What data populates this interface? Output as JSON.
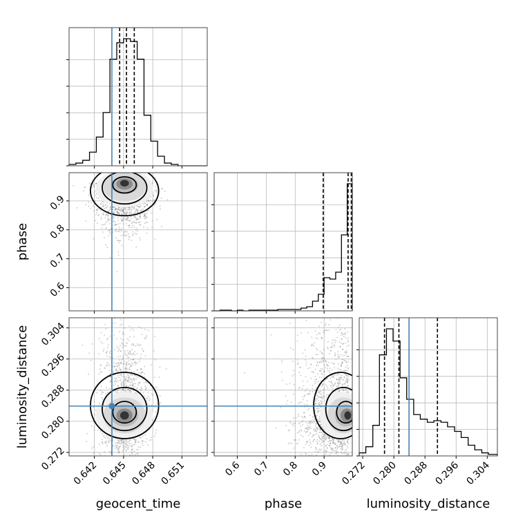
{
  "chart_data": {
    "type": "corner",
    "parameters": [
      "geocent_time",
      "phase",
      "luminosity_distance"
    ],
    "truths": {
      "geocent_time": 0.6438,
      "phase": null,
      "luminosity_distance": 0.2839
    },
    "truth_color": "#4682b4",
    "grid": true,
    "ranges": {
      "geocent_time": [
        0.6394,
        0.6536
      ],
      "phase": [
        0.52,
        0.9975
      ],
      "luminosity_distance": [
        0.2711,
        0.3066
      ]
    },
    "ticks": {
      "geocent_time": [
        0.642,
        0.645,
        0.648,
        0.651
      ],
      "phase": [
        0.6,
        0.7,
        0.8,
        0.9
      ],
      "luminosity_distance": [
        0.272,
        0.28,
        0.288,
        0.296,
        0.304
      ]
    },
    "tick_labels": {
      "geocent_time": [
        "0.642",
        "0.645",
        "0.648",
        "0.651"
      ],
      "phase": [
        "0.6",
        "0.7",
        "0.8",
        "0.9"
      ],
      "luminosity_distance": [
        "0.272",
        "0.280",
        "0.288",
        "0.296",
        "0.304"
      ]
    },
    "quantiles": {
      "geocent_time": [
        0.6446,
        0.6453,
        0.6461
      ],
      "phase": [
        0.897,
        0.983,
        0.994
      ],
      "luminosity_distance": [
        0.2776,
        0.2813,
        0.2912
      ]
    },
    "histograms": {
      "geocent_time": {
        "edges": [
          0.6394,
          0.6401,
          0.6408,
          0.6415,
          0.6422,
          0.6429,
          0.6436,
          0.6443,
          0.645,
          0.6457,
          0.6464,
          0.6471,
          0.6478,
          0.6485,
          0.6492,
          0.6499,
          0.6506,
          0.6513,
          0.652,
          0.6527,
          0.6536
        ],
        "counts": [
          0.01,
          0.02,
          0.04,
          0.1,
          0.21,
          0.39,
          0.78,
          0.9,
          0.93,
          0.91,
          0.78,
          0.37,
          0.18,
          0.07,
          0.02,
          0.01,
          0,
          0,
          0,
          0
        ]
      },
      "phase": {
        "edges": [
          0.52,
          0.54,
          0.56,
          0.58,
          0.6,
          0.62,
          0.64,
          0.66,
          0.68,
          0.7,
          0.72,
          0.74,
          0.76,
          0.78,
          0.8,
          0.82,
          0.84,
          0.86,
          0.88,
          0.9,
          0.92,
          0.94,
          0.96,
          0.98,
          0.9975
        ],
        "counts": [
          0,
          0.005,
          0.005,
          0,
          0.005,
          0,
          0.005,
          0.005,
          0.005,
          0.005,
          0.005,
          0.01,
          0.01,
          0.01,
          0.01,
          0.02,
          0.03,
          0.07,
          0.12,
          0.24,
          0.23,
          0.28,
          0.55,
          0.92
        ]
      },
      "luminosity_distance": {
        "edges": [
          0.2711,
          0.2728,
          0.2746,
          0.2763,
          0.2781,
          0.2798,
          0.2816,
          0.2833,
          0.2851,
          0.2868,
          0.2886,
          0.2903,
          0.2921,
          0.2938,
          0.2956,
          0.2973,
          0.2991,
          0.3008,
          0.3026,
          0.3043,
          0.3066
        ],
        "counts": [
          0.02,
          0.06,
          0.2,
          0.66,
          0.83,
          0.75,
          0.51,
          0.37,
          0.27,
          0.24,
          0.22,
          0.23,
          0.22,
          0.19,
          0.16,
          0.12,
          0.07,
          0.04,
          0.02,
          0.01
        ]
      }
    },
    "scatter_pairs": [
      {
        "x": "geocent_time",
        "y": "phase",
        "center": [
          0.6451,
          0.965
        ],
        "spread": [
          0.0014,
          0.07
        ]
      },
      {
        "x": "geocent_time",
        "y": "luminosity_distance",
        "center": [
          0.6451,
          0.2815
        ],
        "spread": [
          0.0013,
          0.0075
        ]
      },
      {
        "x": "phase",
        "y": "luminosity_distance",
        "center": [
          0.985,
          0.2815
        ],
        "spread": [
          0.07,
          0.0075
        ]
      }
    ]
  }
}
